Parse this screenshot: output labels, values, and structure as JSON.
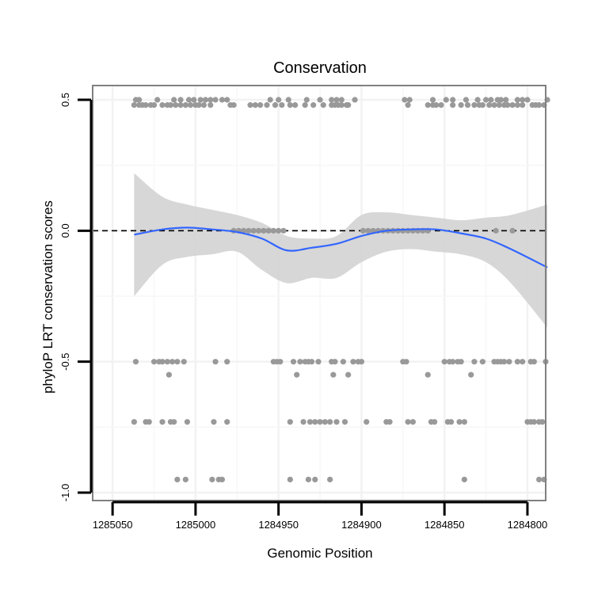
{
  "chart_data": {
    "type": "scatter",
    "title": "Conservation",
    "xlabel": "Genomic Position",
    "ylabel": "phyloP LRT conservation scores",
    "xlim": [
      1285062,
      1284789
    ],
    "ylim": [
      -1.0,
      0.5
    ],
    "x_reversed": true,
    "x_ticks": [
      {
        "value": 1285050,
        "label": "1285050"
      },
      {
        "value": 1285000,
        "label": "1285000"
      },
      {
        "value": 1284950,
        "label": "1284950"
      },
      {
        "value": 1284900,
        "label": "1284900"
      },
      {
        "value": 1284850,
        "label": "1284850"
      },
      {
        "value": 1284800,
        "label": "1284800"
      }
    ],
    "y_ticks": [
      {
        "value": 0.5,
        "label": "0.5"
      },
      {
        "value": 0.0,
        "label": "0.0"
      },
      {
        "value": -0.5,
        "label": "-0.5"
      },
      {
        "value": -1.0,
        "label": "-1.0"
      }
    ],
    "reference_line": {
      "y": 0.0,
      "style": "dashed"
    },
    "smooth": {
      "x": [
        1285037,
        1285020,
        1285005,
        1284990,
        1284975,
        1284960,
        1284945,
        1284930,
        1284915,
        1284900,
        1284885,
        1284870,
        1284855,
        1284840,
        1284825,
        1284810,
        1284788
      ],
      "y": [
        -0.015,
        0.005,
        0.012,
        0.005,
        -0.005,
        -0.03,
        -0.075,
        -0.065,
        -0.05,
        -0.02,
        0.0,
        0.005,
        0.005,
        -0.01,
        -0.03,
        -0.07,
        -0.14
      ],
      "ci_low": [
        -0.25,
        -0.13,
        -0.1,
        -0.09,
        -0.08,
        -0.15,
        -0.2,
        -0.18,
        -0.18,
        -0.12,
        -0.08,
        -0.07,
        -0.08,
        -0.09,
        -0.12,
        -0.2,
        -0.37
      ],
      "ci_high": [
        0.22,
        0.13,
        0.1,
        0.08,
        0.06,
        0.03,
        -0.02,
        -0.03,
        -0.02,
        0.06,
        0.07,
        0.06,
        0.05,
        0.04,
        0.05,
        0.06,
        0.1
      ],
      "color": "#3366ff",
      "band_color": "#d3d3d3"
    },
    "point_color": "#999999",
    "series": [
      {
        "name": "y=0.5",
        "y": 0.5,
        "x": [
          1285036,
          1285034,
          1285023,
          1285013,
          1285009,
          1285004,
          1285001,
          1284997,
          1284994,
          1284991,
          1284988,
          1284984,
          1284981,
          1284955,
          1284950,
          1284944,
          1284933,
          1284925,
          1284918,
          1284915,
          1284912,
          1284904,
          1284874,
          1284871,
          1284857,
          1284849,
          1284845,
          1284837,
          1284830,
          1284825,
          1284822,
          1284818,
          1284816,
          1284813,
          1284806,
          1284803,
          1284800,
          1284788
        ]
      },
      {
        "name": "y=0.48",
        "y": 0.48,
        "x": [
          1285037,
          1285034,
          1285032,
          1285030,
          1285027,
          1285025,
          1285020,
          1285017,
          1285015,
          1285012,
          1285009,
          1285006,
          1285003,
          1285000,
          1284998,
          1284995,
          1284991,
          1284979,
          1284977,
          1284967,
          1284964,
          1284961,
          1284957,
          1284952,
          1284948,
          1284943,
          1284940,
          1284934,
          1284929,
          1284923,
          1284918,
          1284916,
          1284914,
          1284912,
          1284909,
          1284908,
          1284872,
          1284860,
          1284857,
          1284855,
          1284852,
          1284845,
          1284840,
          1284836,
          1284832,
          1284829,
          1284827,
          1284823,
          1284820,
          1284817,
          1284814,
          1284812,
          1284809,
          1284806,
          1284803,
          1284797,
          1284795,
          1284793,
          1284790
        ]
      },
      {
        "name": "y=0.0",
        "y": 0.0,
        "x": [
          1284977,
          1284974,
          1284971,
          1284968,
          1284965,
          1284962,
          1284959,
          1284956,
          1284953,
          1284950,
          1284947,
          1284899,
          1284896,
          1284893,
          1284890,
          1284887,
          1284884,
          1284881,
          1284878,
          1284875,
          1284872,
          1284869,
          1284866,
          1284863,
          1284860,
          1284819,
          1284809
        ]
      },
      {
        "name": "y=-0.5",
        "y": -0.5,
        "x": [
          1285036,
          1285025,
          1285022,
          1285020,
          1285017,
          1285014,
          1285011,
          1285007,
          1284988,
          1284981,
          1284953,
          1284951,
          1284949,
          1284941,
          1284937,
          1284934,
          1284932,
          1284930,
          1284926,
          1284918,
          1284916,
          1284911,
          1284905,
          1284902,
          1284900,
          1284875,
          1284873,
          1284850,
          1284847,
          1284845,
          1284842,
          1284840,
          1284832,
          1284827,
          1284820,
          1284818,
          1284816,
          1284814,
          1284811,
          1284806,
          1284803,
          1284798,
          1284796,
          1284789
        ]
      },
      {
        "name": "y=-0.55",
        "y": -0.55,
        "x": [
          1285016,
          1284939,
          1284917,
          1284908,
          1284860,
          1284834
        ]
      },
      {
        "name": "y=-0.73",
        "y": -0.73,
        "x": [
          1285037,
          1285030,
          1285028,
          1285020,
          1285015,
          1285013,
          1285005,
          1284989,
          1284981,
          1284943,
          1284935,
          1284931,
          1284928,
          1284925,
          1284922,
          1284919,
          1284915,
          1284910,
          1284897,
          1284885,
          1284883,
          1284872,
          1284869,
          1284858,
          1284856,
          1284848,
          1284846,
          1284841,
          1284838,
          1284800,
          1284798,
          1284796,
          1284793,
          1284791
        ]
      },
      {
        "name": "y=-0.95",
        "y": -0.95,
        "x": [
          1285011,
          1285006,
          1284990,
          1284986,
          1284984,
          1284943,
          1284932,
          1284928,
          1284919,
          1284838,
          1284793,
          1284790
        ]
      }
    ]
  }
}
